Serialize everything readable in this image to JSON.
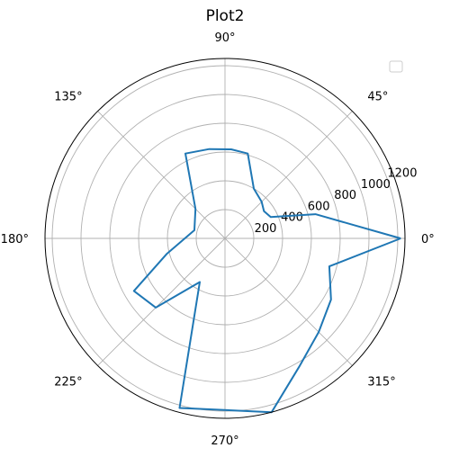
{
  "chart_data": {
    "type": "line",
    "projection": "polar",
    "title": "Plot2",
    "theta_ticks": [
      "0°",
      "45°",
      "90°",
      "135°",
      "180°",
      "225°",
      "270°",
      "315°"
    ],
    "r_ticks": [
      200,
      400,
      600,
      800,
      1000,
      1200
    ],
    "rlim": [
      0,
      1250
    ],
    "grid": true,
    "legend": {
      "placement": "top-right",
      "entries": []
    },
    "series": [
      {
        "color": "#1f77b4",
        "points": [
          {
            "theta_deg": 0,
            "r": 1220
          },
          {
            "theta_deg": 15,
            "r": 650
          },
          {
            "theta_deg": 25,
            "r": 350
          },
          {
            "theta_deg": 35,
            "r": 330
          },
          {
            "theta_deg": 45,
            "r": 360
          },
          {
            "theta_deg": 60,
            "r": 400
          },
          {
            "theta_deg": 75,
            "r": 610
          },
          {
            "theta_deg": 86,
            "r": 620
          },
          {
            "theta_deg": 100,
            "r": 630
          },
          {
            "theta_deg": 115,
            "r": 650
          },
          {
            "theta_deg": 135,
            "r": 290
          },
          {
            "theta_deg": 165,
            "r": 220
          },
          {
            "theta_deg": 195,
            "r": 420
          },
          {
            "theta_deg": 210,
            "r": 730
          },
          {
            "theta_deg": 225,
            "r": 680
          },
          {
            "theta_deg": 240,
            "r": 350
          },
          {
            "theta_deg": 255,
            "r": 1220
          },
          {
            "theta_deg": 285,
            "r": 1250
          },
          {
            "theta_deg": 300,
            "r": 1030
          },
          {
            "theta_deg": 315,
            "r": 920
          },
          {
            "theta_deg": 330,
            "r": 850
          },
          {
            "theta_deg": 345,
            "r": 750
          },
          {
            "theta_deg": 360,
            "r": 1220
          }
        ]
      }
    ]
  }
}
